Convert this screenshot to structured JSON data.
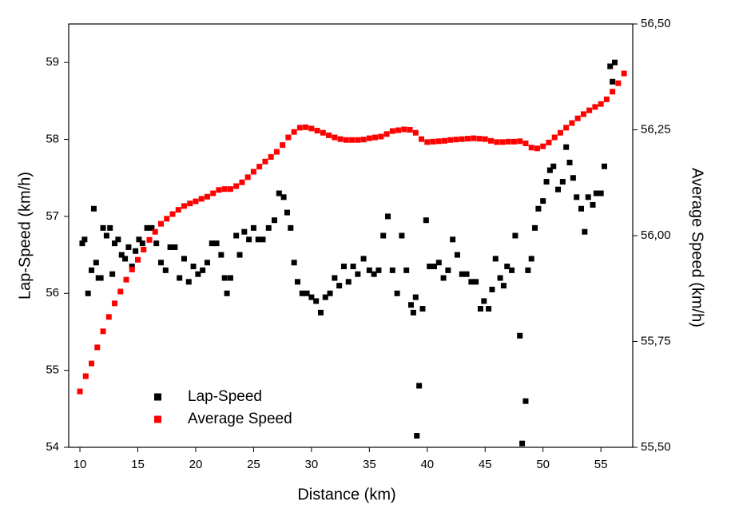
{
  "chart_data": {
    "type": "scatter",
    "xlabel": "Distance (km)",
    "ylabel": "Lap-Speed (km/h)",
    "y2label": "Average Speed (km/h)",
    "xlim": [
      9.03,
      57.75
    ],
    "ylim": [
      54,
      59.5
    ],
    "y2lim": [
      55.5,
      56.5
    ],
    "xticks": [
      10,
      15,
      20,
      25,
      30,
      35,
      40,
      45,
      50,
      55
    ],
    "yticks": [
      54,
      55,
      56,
      57,
      58,
      59
    ],
    "y2ticks": [
      {
        "value": 55.5,
        "label": "55,50"
      },
      {
        "value": 55.75,
        "label": "55,75"
      },
      {
        "value": 56.0,
        "label": "56,00"
      },
      {
        "value": 56.25,
        "label": "56,25"
      },
      {
        "value": 56.5,
        "label": "56,50"
      }
    ],
    "legend": "lower left",
    "series": [
      {
        "name": "Lap-Speed",
        "color": "#000000",
        "x": [
          10.2,
          10.4,
          10.7,
          11.0,
          11.2,
          11.4,
          11.6,
          11.8,
          12.0,
          12.3,
          12.6,
          12.8,
          13.0,
          13.3,
          13.6,
          13.9,
          14.2,
          14.5,
          14.8,
          15.1,
          15.4,
          15.8,
          16.2,
          16.6,
          17.0,
          17.4,
          17.8,
          18.2,
          18.6,
          19.0,
          19.4,
          19.8,
          20.2,
          20.6,
          21.0,
          21.4,
          21.8,
          22.2,
          22.5,
          22.7,
          23.0,
          23.5,
          23.8,
          24.2,
          24.6,
          25.0,
          25.4,
          25.8,
          26.3,
          26.8,
          27.2,
          27.6,
          27.9,
          28.2,
          28.5,
          28.8,
          29.2,
          29.6,
          30.0,
          30.4,
          30.8,
          31.2,
          31.6,
          32.0,
          32.4,
          32.8,
          33.2,
          33.6,
          34.0,
          34.5,
          35.0,
          35.4,
          35.8,
          36.2,
          36.6,
          37.0,
          37.4,
          37.8,
          38.2,
          38.6,
          38.8,
          39.0,
          39.1,
          39.3,
          39.6,
          39.9,
          40.2,
          40.6,
          41.0,
          41.4,
          41.8,
          42.2,
          42.6,
          43.0,
          43.4,
          43.8,
          44.2,
          44.6,
          44.9,
          45.3,
          45.6,
          45.9,
          46.3,
          46.6,
          46.9,
          47.3,
          47.6,
          48.0,
          48.2,
          48.5,
          48.7,
          49.0,
          49.3,
          49.6,
          50.0,
          50.3,
          50.6,
          50.9,
          51.3,
          51.7,
          52.0,
          52.3,
          52.6,
          52.9,
          53.3,
          53.6,
          53.9,
          54.3,
          54.6,
          55.0,
          55.3,
          55.8,
          56.0,
          56.2
        ],
        "values": [
          56.65,
          56.7,
          56.0,
          56.3,
          57.1,
          56.4,
          56.2,
          56.2,
          56.85,
          56.75,
          56.85,
          56.25,
          56.65,
          56.7,
          56.5,
          56.45,
          56.6,
          56.35,
          56.55,
          56.7,
          56.65,
          56.85,
          56.85,
          56.65,
          56.4,
          56.3,
          56.6,
          56.6,
          56.2,
          56.45,
          56.15,
          56.35,
          56.25,
          56.3,
          56.4,
          56.65,
          56.65,
          56.5,
          56.2,
          56.0,
          56.2,
          56.75,
          56.5,
          56.8,
          56.7,
          56.85,
          56.7,
          56.7,
          56.85,
          56.95,
          57.3,
          57.25,
          57.05,
          56.85,
          56.4,
          56.15,
          56.0,
          56.0,
          55.95,
          55.9,
          55.75,
          55.95,
          56.0,
          56.2,
          56.1,
          56.35,
          56.15,
          56.35,
          56.25,
          56.45,
          56.3,
          56.25,
          56.3,
          56.75,
          57.0,
          56.3,
          56.0,
          56.75,
          56.3,
          55.85,
          55.75,
          55.95,
          54.15,
          54.8,
          55.8,
          56.95,
          56.35,
          56.35,
          56.4,
          56.2,
          56.3,
          56.7,
          56.5,
          56.25,
          56.25,
          56.15,
          56.15,
          55.8,
          55.9,
          55.8,
          56.05,
          56.45,
          56.2,
          56.1,
          56.35,
          56.3,
          56.75,
          55.45,
          54.05,
          54.6,
          56.3,
          56.45,
          56.85,
          57.1,
          57.2,
          57.45,
          57.6,
          57.65,
          57.35,
          57.45,
          57.9,
          57.7,
          57.5,
          57.25,
          57.1,
          56.8,
          57.25,
          57.15,
          57.3,
          57.3,
          57.65,
          58.95,
          58.75,
          59.0
        ]
      },
      {
        "name": "Average Speed",
        "color": "#ff0000",
        "axis": "y2",
        "x": [
          10,
          10.5,
          11,
          11.5,
          12,
          12.5,
          13,
          13.5,
          14,
          14.5,
          15,
          15.5,
          16,
          16.5,
          17,
          17.5,
          18,
          18.5,
          19,
          19.5,
          20,
          20.5,
          21,
          21.5,
          22,
          22.5,
          23,
          23.5,
          24,
          24.5,
          25,
          25.5,
          26,
          26.5,
          27,
          27.5,
          28,
          28.5,
          29,
          29.5,
          30,
          30.5,
          31,
          31.5,
          32,
          32.5,
          33,
          33.5,
          34,
          34.5,
          35,
          35.5,
          36,
          36.5,
          37,
          37.5,
          38,
          38.5,
          39,
          39.5,
          40,
          40.5,
          41,
          41.5,
          42,
          42.5,
          43,
          43.5,
          44,
          44.5,
          45,
          45.5,
          46,
          46.5,
          47,
          47.5,
          48,
          48.5,
          49,
          49.5,
          50,
          50.5,
          51,
          51.5,
          52,
          52.5,
          53,
          53.5,
          54,
          54.5,
          55,
          55.5,
          56,
          56.5,
          57
        ],
        "values": [
          55.632,
          55.668,
          55.698,
          55.736,
          55.774,
          55.808,
          55.84,
          55.868,
          55.896,
          55.92,
          55.943,
          55.967,
          55.99,
          56.009,
          56.028,
          56.04,
          56.051,
          56.061,
          56.07,
          56.076,
          56.081,
          56.087,
          56.092,
          56.1,
          56.108,
          56.11,
          56.11,
          56.117,
          56.126,
          56.138,
          56.151,
          56.163,
          56.175,
          56.186,
          56.198,
          56.214,
          56.232,
          56.245,
          56.255,
          56.256,
          56.253,
          56.248,
          56.243,
          56.237,
          56.232,
          56.228,
          56.226,
          56.226,
          56.226,
          56.227,
          56.23,
          56.232,
          56.234,
          56.24,
          56.247,
          56.249,
          56.251,
          56.25,
          56.243,
          56.228,
          56.221,
          56.222,
          56.223,
          56.224,
          56.226,
          56.227,
          56.228,
          56.229,
          56.23,
          56.229,
          56.228,
          56.224,
          56.221,
          56.221,
          56.222,
          56.222,
          56.223,
          56.218,
          56.208,
          56.206,
          56.211,
          56.22,
          56.232,
          56.243,
          56.255,
          56.266,
          56.277,
          56.287,
          56.296,
          56.304,
          56.311,
          56.322,
          56.34,
          56.36,
          56.383
        ]
      }
    ]
  }
}
